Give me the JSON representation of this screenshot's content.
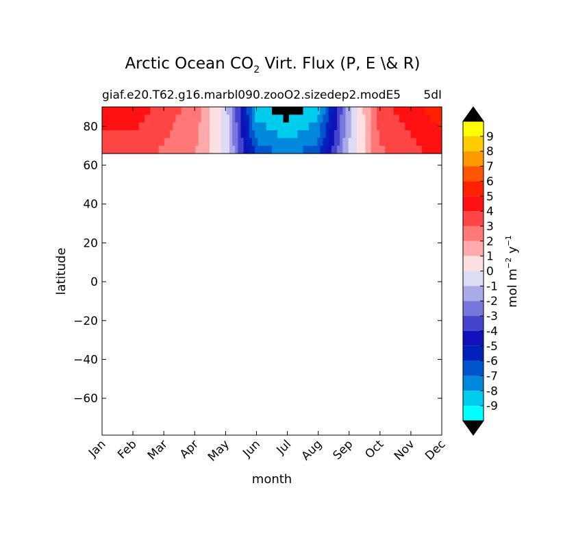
{
  "chart_data": {
    "type": "heatmap",
    "title": "Arctic Ocean CO",
    "title_sub": "2",
    "title_rest": " Virt. Flux (P, E \\& R)",
    "subtitle_left": "giaf.e20.T62.g16.marbl090.zooO2.sizedep2.modE5",
    "subtitle_right": "5dI",
    "xlabel": "month",
    "ylabel": "latitude",
    "colorbar_label": "mol m",
    "colorbar_label_exp1": "−2",
    "colorbar_label_mid": " y",
    "colorbar_label_exp2": "−1",
    "x_categories": [
      "Jan",
      "Feb",
      "Mar",
      "Apr",
      "May",
      "Jun",
      "Jul",
      "Aug",
      "Sep",
      "Oct",
      "Nov",
      "Dec"
    ],
    "y_ticks": [
      80,
      60,
      40,
      20,
      0,
      -20,
      -40,
      -60
    ],
    "y_tick_labels": [
      "80",
      "60",
      "40",
      "20",
      "0",
      "−20",
      "−40",
      "−60"
    ],
    "ylim": [
      -79,
      90
    ],
    "data_lat_range": [
      66,
      90
    ],
    "colorbar_ticks": [
      "9",
      "8",
      "7",
      "6",
      "5",
      "4",
      "3",
      "2",
      "1",
      "0",
      "-1",
      "-2",
      "-3",
      "-4",
      "-5",
      "-6",
      "-7",
      "-8",
      "-9"
    ],
    "colorbar_colors": [
      "#ffff00",
      "#ffcc00",
      "#ff9900",
      "#ff5500",
      "#ff2200",
      "#ff1111",
      "#ff4444",
      "#ff7777",
      "#ffaaaa",
      "#ffe0e0",
      "#dcdcf4",
      "#aaaae8",
      "#7777dd",
      "#4444cc",
      "#1111bb",
      "#0022bb",
      "#0055cc",
      "#0088dd",
      "#00ccee",
      "#00ffff"
    ],
    "extend_colors": {
      "over": "#000000",
      "under": "#000000"
    },
    "seasonal_flux": {
      "months": [
        "Jan",
        "Feb",
        "Mar",
        "Apr",
        "May",
        "Jun",
        "Jul",
        "Aug",
        "Sep",
        "Oct",
        "Nov",
        "Dec"
      ],
      "approx_flux": [
        4,
        4,
        3,
        2,
        -1,
        -9,
        -10,
        -9,
        -2,
        3,
        4,
        5
      ]
    }
  }
}
